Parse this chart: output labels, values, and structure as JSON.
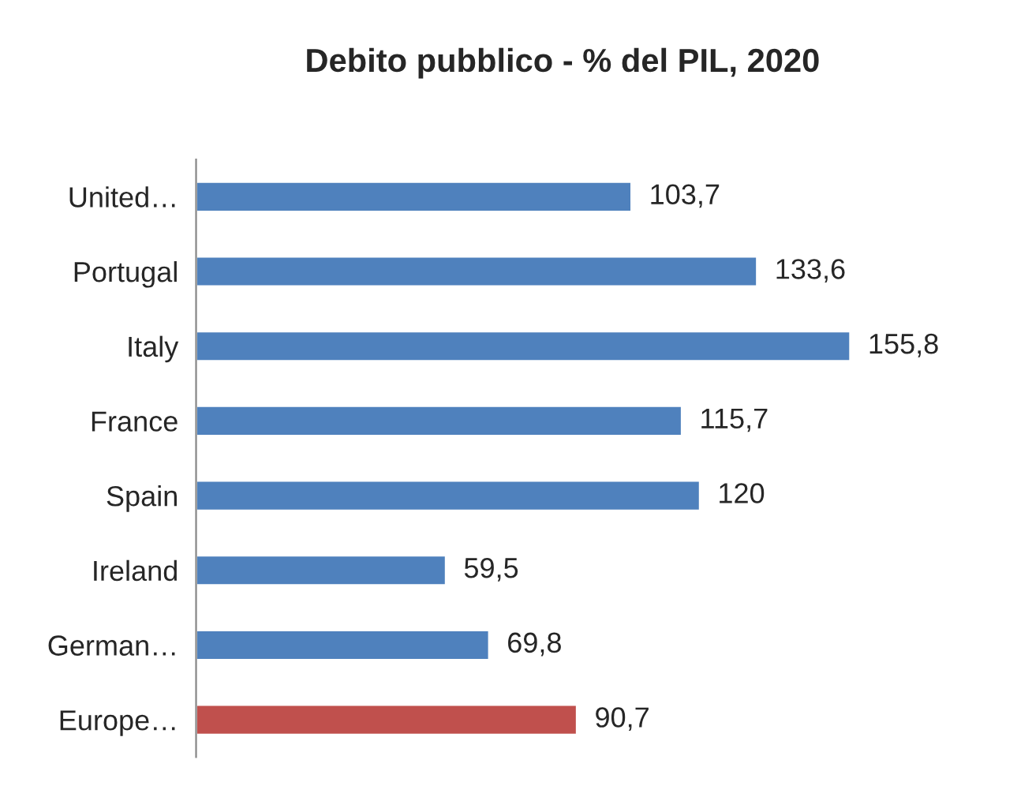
{
  "chart_data": {
    "type": "bar",
    "orientation": "horizontal",
    "title": "Debito pubblico - % del PIL, 2020",
    "categories": [
      "United…",
      "Portugal",
      "Italy",
      "France",
      "Spain",
      "Ireland",
      "German…",
      "Europe…"
    ],
    "values": [
      103.7,
      133.6,
      155.8,
      115.7,
      120,
      59.5,
      69.8,
      90.7
    ],
    "value_labels": [
      "103,7",
      "133,6",
      "155,8",
      "115,7",
      "120",
      "59,5",
      "69,8",
      "90,7"
    ],
    "colors": [
      "#4f81bd",
      "#4f81bd",
      "#4f81bd",
      "#4f81bd",
      "#4f81bd",
      "#4f81bd",
      "#4f81bd",
      "#c0504d"
    ],
    "grid": false,
    "legend": false
  }
}
